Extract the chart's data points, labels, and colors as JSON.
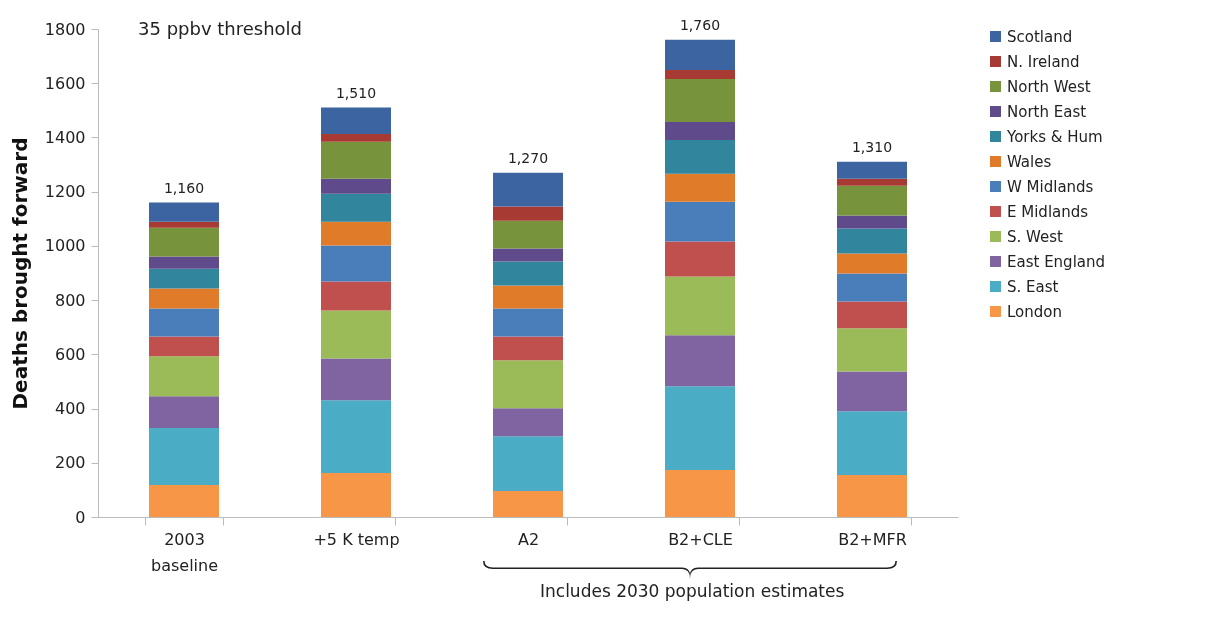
{
  "chart_data": {
    "type": "bar",
    "stacked": true,
    "ylabel": "Deaths brought forward",
    "categories": [
      "2003\nbaseline",
      "+5 K temp",
      "A2",
      "B2+CLE",
      "B2+MFR"
    ],
    "series": [
      {
        "name": "London",
        "color": "#f79646",
        "values": [
          118,
          162,
          96,
          173,
          155
        ]
      },
      {
        "name": "S. East",
        "color": "#4bacc6",
        "values": [
          210,
          269,
          202,
          309,
          235
        ]
      },
      {
        "name": "East England",
        "color": "#8064a2",
        "values": [
          117,
          154,
          103,
          188,
          147
        ]
      },
      {
        "name": "S. West",
        "color": "#9bbb59",
        "values": [
          148,
          177,
          177,
          217,
          159
        ]
      },
      {
        "name": "E Midlands",
        "color": "#c0504d",
        "values": [
          73,
          107,
          88,
          129,
          99
        ]
      },
      {
        "name": "W Midlands",
        "color": "#4a7ebb",
        "values": [
          103,
          132,
          103,
          147,
          103
        ]
      },
      {
        "name": "Wales",
        "color": "#e07b2a",
        "values": [
          74,
          88,
          85,
          103,
          74
        ]
      },
      {
        "name": "Yorks & Hum",
        "color": "#31859c",
        "values": [
          73,
          103,
          88,
          125,
          92
        ]
      },
      {
        "name": "North East",
        "color": "#5f4a8b",
        "values": [
          45,
          56,
          48,
          66,
          48
        ]
      },
      {
        "name": "North West",
        "color": "#77933c",
        "values": [
          106,
          136,
          103,
          159,
          110
        ]
      },
      {
        "name": "N. Ireland",
        "color": "#a83a34",
        "values": [
          22,
          29,
          52,
          33,
          26
        ]
      },
      {
        "name": "Scotland",
        "color": "#3c64a0",
        "values": [
          71,
          97,
          125,
          111,
          62
        ]
      }
    ],
    "totals": [
      "1,160",
      "1,510",
      "1,270",
      "1,760",
      "1,310"
    ],
    "ylim": [
      0,
      1800
    ],
    "yticks": [
      0,
      200,
      400,
      600,
      800,
      1000,
      1200,
      1400,
      1600,
      1800
    ],
    "legend": "right",
    "grid": false,
    "annotations": [
      "35 ppbv threshold",
      "Includes 2030 population estimates"
    ]
  }
}
